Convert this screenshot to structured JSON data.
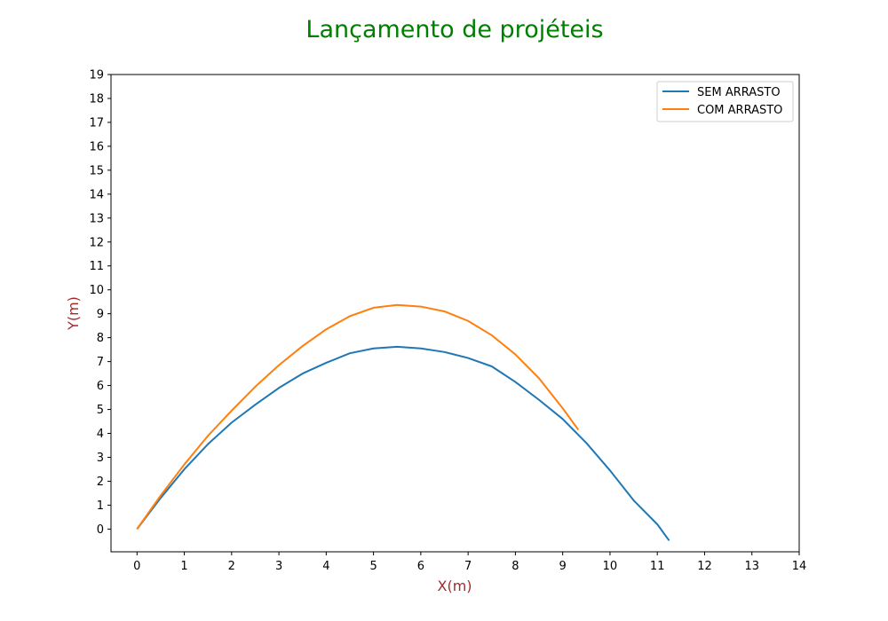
{
  "chart_data": {
    "type": "line",
    "title": "Lançamento de projéteis",
    "xlabel": "X(m)",
    "ylabel": "Y(m)",
    "xlim": [
      -0.55,
      14
    ],
    "ylim": [
      -0.95,
      19
    ],
    "x_ticks": [
      0,
      1,
      2,
      3,
      4,
      5,
      6,
      7,
      8,
      9,
      10,
      11,
      12,
      13,
      14
    ],
    "y_ticks": [
      0,
      1,
      2,
      3,
      4,
      5,
      6,
      7,
      8,
      9,
      10,
      11,
      12,
      13,
      14,
      15,
      16,
      17,
      18,
      19
    ],
    "grid": false,
    "legend_position": "top-right",
    "colors": {
      "title": "#008000",
      "axis_labels": "#a52a2a",
      "axes": "#000000"
    },
    "series": [
      {
        "name": "SEM ARRASTO",
        "color": "#1f77b4",
        "points": [
          [
            0,
            0
          ],
          [
            0.5,
            1.3
          ],
          [
            1.0,
            2.5
          ],
          [
            1.5,
            3.55
          ],
          [
            2.0,
            4.45
          ],
          [
            2.5,
            5.2
          ],
          [
            3.0,
            5.9
          ],
          [
            3.5,
            6.5
          ],
          [
            4.0,
            6.95
          ],
          [
            4.5,
            7.35
          ],
          [
            5.0,
            7.55
          ],
          [
            5.5,
            7.62
          ],
          [
            6.0,
            7.55
          ],
          [
            6.5,
            7.4
          ],
          [
            7.0,
            7.15
          ],
          [
            7.5,
            6.8
          ],
          [
            8.0,
            6.15
          ],
          [
            8.5,
            5.4
          ],
          [
            9.0,
            4.6
          ],
          [
            9.5,
            3.6
          ],
          [
            10.0,
            2.45
          ],
          [
            10.5,
            1.2
          ],
          [
            11.0,
            0.2
          ],
          [
            11.25,
            -0.48
          ]
        ]
      },
      {
        "name": "COM ARRASTO",
        "color": "#ff7f0e",
        "points": [
          [
            0,
            0
          ],
          [
            0.5,
            1.4
          ],
          [
            1.0,
            2.7
          ],
          [
            1.5,
            3.9
          ],
          [
            2.0,
            4.95
          ],
          [
            2.5,
            5.95
          ],
          [
            3.0,
            6.85
          ],
          [
            3.5,
            7.65
          ],
          [
            4.0,
            8.35
          ],
          [
            4.5,
            8.9
          ],
          [
            5.0,
            9.25
          ],
          [
            5.5,
            9.37
          ],
          [
            6.0,
            9.3
          ],
          [
            6.5,
            9.1
          ],
          [
            7.0,
            8.7
          ],
          [
            7.5,
            8.1
          ],
          [
            8.0,
            7.3
          ],
          [
            8.5,
            6.3
          ],
          [
            9.0,
            5.05
          ],
          [
            9.33,
            4.15
          ]
        ]
      }
    ]
  }
}
